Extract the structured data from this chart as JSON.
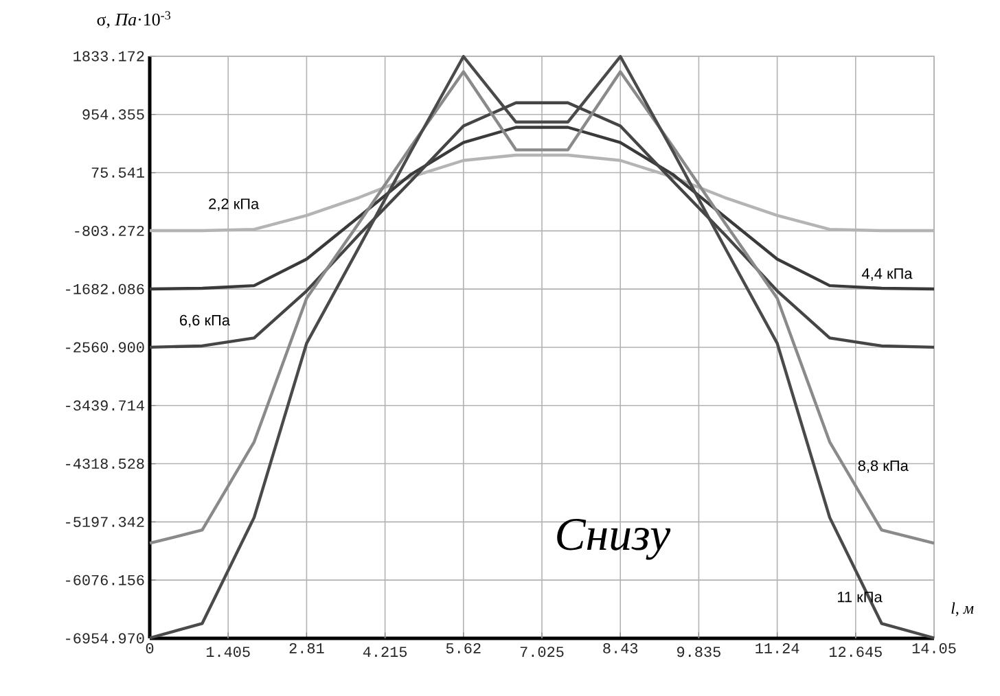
{
  "chart_data": {
    "type": "line",
    "ylabel": "σ, *Па*·10$^{-3}$",
    "xlabel": "*l*, *м*",
    "x": [
      0,
      0.94,
      1.87,
      2.81,
      3.75,
      4.68,
      5.62,
      6.56,
      7.49,
      8.43,
      9.37,
      10.3,
      11.24,
      12.18,
      13.11,
      14.05
    ],
    "series": [
      {
        "color": "#b4b4b4",
        "values": [
          -800,
          -800,
          -780,
          -570,
          -300,
          10,
          260,
          340,
          340,
          260,
          10,
          -300,
          -570,
          -780,
          -800,
          -800
        ]
      },
      {
        "color": "#3a3a3a",
        "values": [
          -1680,
          -1670,
          -1630,
          -1230,
          -590,
          50,
          530,
          760,
          760,
          530,
          50,
          -590,
          -1230,
          -1630,
          -1670,
          -1680
        ]
      },
      {
        "color": "#454545",
        "values": [
          -2560,
          -2540,
          -2420,
          -1710,
          -860,
          -50,
          780,
          1130,
          1130,
          780,
          -50,
          -860,
          -1710,
          -2420,
          -2540,
          -2560
        ]
      },
      {
        "color": "#8a8a8a",
        "values": [
          -5520,
          -5320,
          -3990,
          -1820,
          -680,
          470,
          1600,
          420,
          420,
          1600,
          470,
          -680,
          -1820,
          -3990,
          -5320,
          -5520
        ]
      },
      {
        "color": "#4a4a4a",
        "values": [
          -6950,
          -6730,
          -5130,
          -2500,
          -1050,
          400,
          1830,
          840,
          840,
          1830,
          400,
          -1050,
          -2500,
          -5130,
          -6730,
          -6950
        ]
      }
    ],
    "annotations": [
      "2,2 кПа",
      "4,4 кПа",
      "6,6 кПа",
      "8,8 кПа",
      "11 кПа",
      "Снизу"
    ],
    "xlim": [
      0,
      14.05
    ],
    "ylim": [
      -6954.97,
      1833.172
    ],
    "xticks": [
      0,
      1.405,
      2.81,
      4.215,
      5.62,
      7.025,
      8.43,
      9.835,
      11.24,
      12.645,
      14.05
    ],
    "yticks": [
      {
        "value": -6954.97,
        "label": "-6954.970"
      },
      -6076.156,
      -5197.342,
      -4318.528,
      -3439.714,
      {
        "value": -2560.9,
        "label": "-2560.900"
      },
      -1682.086,
      -803.272,
      75.541,
      954.355,
      1833.172
    ],
    "grid": true,
    "marker": "none",
    "line_style": "solid"
  }
}
